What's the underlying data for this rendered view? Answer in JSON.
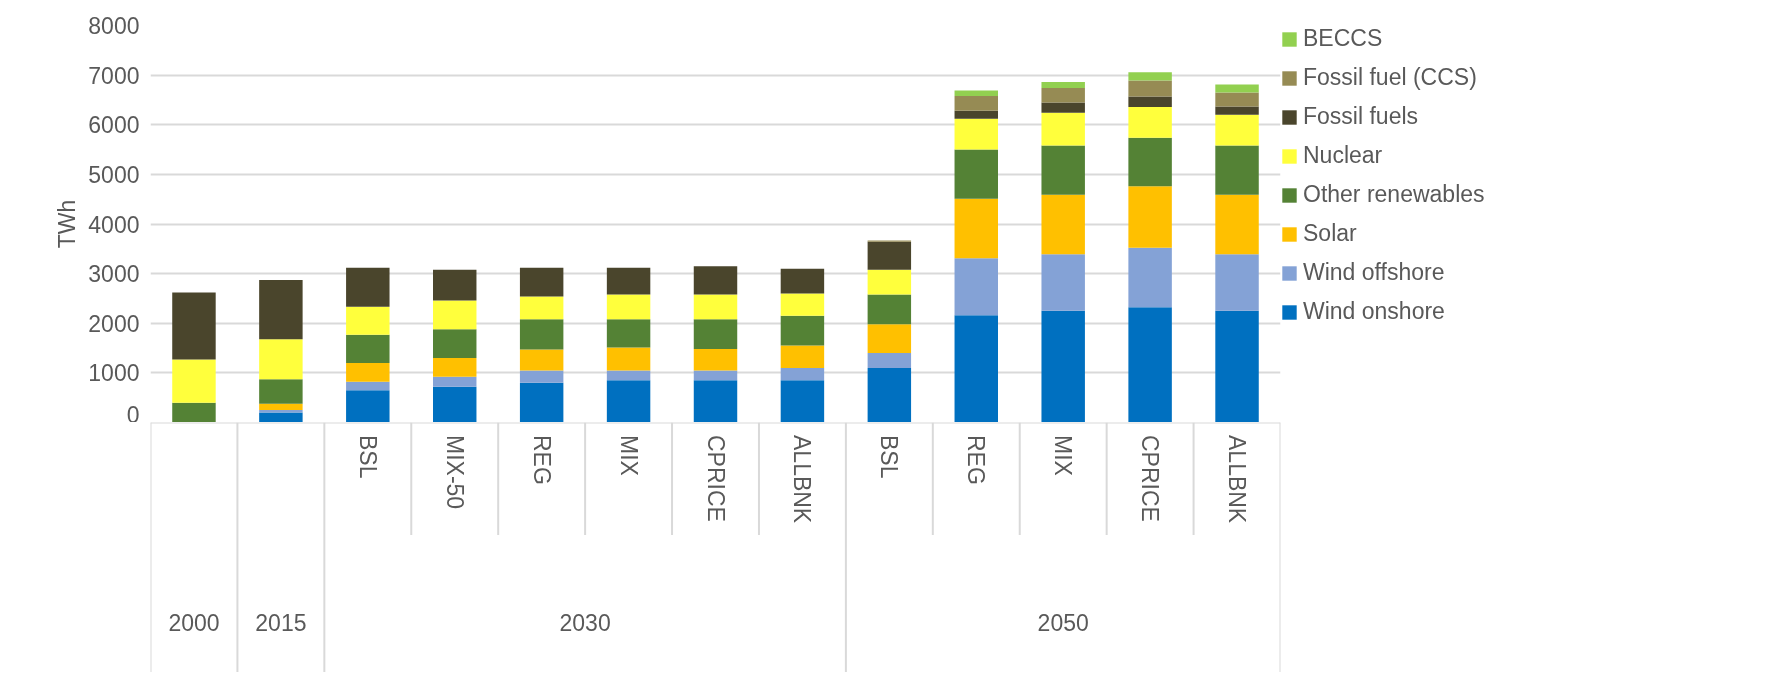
{
  "chart_data": {
    "type": "bar",
    "stacked": true,
    "ylabel": "TWh",
    "categories": [
      null,
      null,
      "BSL",
      "MIX-50",
      "REG",
      "MIX",
      "CPRICE",
      "ALLBNK",
      "BSL",
      "REG",
      "MIX",
      "CPRICE",
      "ALLBNK"
    ],
    "annotations": [
      "2000",
      "2015",
      "2030",
      "2050"
    ],
    "ylim": [
      0,
      8000
    ],
    "yticks": [
      0,
      1000,
      2000,
      3000,
      4000,
      5000,
      6000,
      7000,
      8000
    ],
    "grid": "y",
    "legend": "right",
    "series": [
      {
        "name": "Wind onshore",
        "color": "#0070c0",
        "values": [
          0,
          200,
          650,
          720,
          800,
          850,
          850,
          850,
          1100,
          2160,
          2250,
          2320,
          2250
        ]
      },
      {
        "name": "Wind offshore",
        "color": "#84a2d6",
        "values": [
          0,
          50,
          170,
          200,
          250,
          200,
          200,
          250,
          300,
          1150,
          1140,
          1200,
          1140
        ]
      },
      {
        "name": "Solar",
        "color": "#ffc000",
        "values": [
          0,
          130,
          380,
          380,
          420,
          460,
          430,
          450,
          580,
          1200,
          1200,
          1240,
          1200
        ]
      },
      {
        "name": "Other renewables",
        "color": "#548235",
        "values": [
          400,
          490,
          570,
          580,
          610,
          570,
          600,
          600,
          600,
          990,
          990,
          980,
          990
        ]
      },
      {
        "name": "Nuclear",
        "color": "#ffff3c",
        "values": [
          870,
          810,
          560,
          580,
          460,
          500,
          500,
          450,
          500,
          620,
          660,
          620,
          620
        ]
      },
      {
        "name": "Fossil fuels",
        "color": "#4a452c",
        "values": [
          1350,
          1190,
          790,
          620,
          580,
          540,
          570,
          500,
          560,
          160,
          210,
          210,
          170
        ]
      },
      {
        "name": "Fossil fuel (CCS)",
        "color": "#968b54",
        "values": [
          0,
          0,
          0,
          0,
          0,
          0,
          0,
          0,
          30,
          300,
          290,
          320,
          280
        ]
      },
      {
        "name": "BECCS",
        "color": "#92d050",
        "values": [
          0,
          0,
          0,
          0,
          0,
          0,
          0,
          0,
          0,
          110,
          120,
          170,
          160
        ]
      }
    ]
  }
}
